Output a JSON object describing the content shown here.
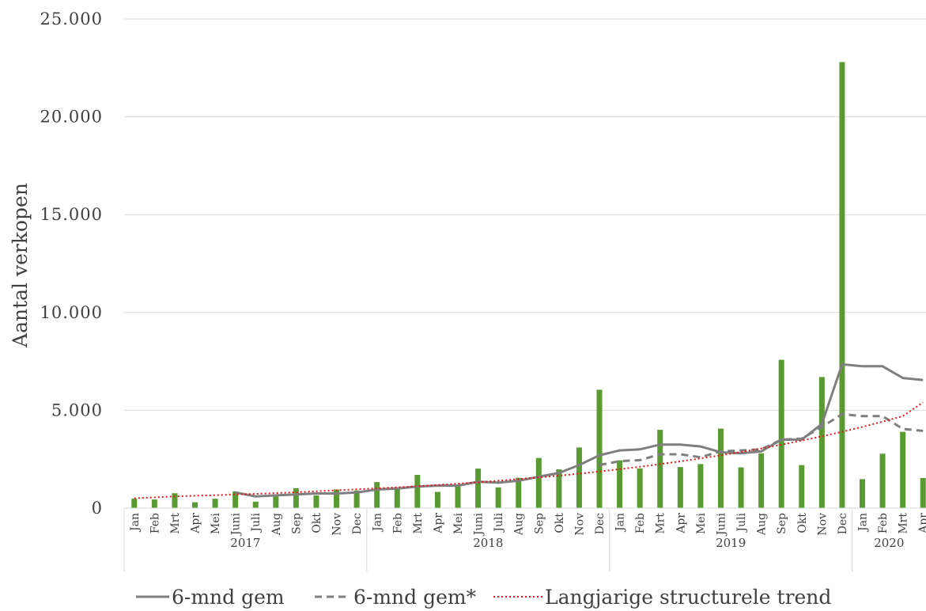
{
  "chart_data": {
    "type": "bar",
    "ylabel": "Aantal verkopen",
    "ylim": [
      0,
      25000
    ],
    "yticks": [
      "0",
      "5.000",
      "10.000",
      "15.000",
      "20.000",
      "25.000"
    ],
    "grid": true,
    "legend_position": "bottom",
    "categories": [
      "Jan",
      "Feb",
      "Mrt",
      "Apr",
      "Mei",
      "Juni",
      "Juli",
      "Aug",
      "Sep",
      "Okt",
      "Nov",
      "Dec",
      "Jan",
      "Feb",
      "Mrt",
      "Apr",
      "Mei",
      "Juni",
      "Juli",
      "Aug",
      "Sep",
      "Okt",
      "Nov",
      "Dec",
      "Jan",
      "Feb",
      "Mrt",
      "Apr",
      "Mei",
      "Juni",
      "Juli",
      "Aug",
      "Sep",
      "Okt",
      "Nov",
      "Dec",
      "Jan",
      "Feb",
      "Mrt",
      "Apr"
    ],
    "years": [
      {
        "label": "2017",
        "months": 12
      },
      {
        "label": "2018",
        "months": 12
      },
      {
        "label": "2019",
        "months": 12
      },
      {
        "label": "2020",
        "months": 4
      }
    ],
    "bars": {
      "color": "#5a9a32",
      "values": [
        480,
        440,
        760,
        300,
        480,
        850,
        330,
        600,
        1020,
        650,
        950,
        900,
        1330,
        1050,
        1700,
        830,
        1150,
        2020,
        1060,
        1550,
        2560,
        1980,
        3100,
        6050,
        2440,
        2030,
        4000,
        2100,
        2250,
        4060,
        2080,
        2800,
        7580,
        2200,
        6700,
        22800,
        1480,
        2780,
        3900,
        1540
      ]
    },
    "series": [
      {
        "name": "6-mnd gem",
        "style": "solid",
        "color": "#7f7f7f",
        "values": [
          null,
          null,
          null,
          null,
          null,
          800,
          600,
          650,
          700,
          750,
          750,
          800,
          950,
          1000,
          1100,
          1150,
          1150,
          1350,
          1300,
          1400,
          1600,
          1800,
          2200,
          2700,
          2950,
          3000,
          3250,
          3250,
          3150,
          2850,
          2800,
          2900,
          3500,
          3500,
          4300,
          7350,
          7250,
          7250,
          6650,
          6550
        ]
      },
      {
        "name": "6-mnd gem*",
        "style": "dashed",
        "color": "#7f7f7f",
        "values": [
          null,
          null,
          null,
          null,
          null,
          null,
          null,
          null,
          null,
          null,
          null,
          null,
          null,
          null,
          null,
          null,
          null,
          null,
          null,
          null,
          null,
          null,
          null,
          2200,
          2400,
          2450,
          2750,
          2750,
          2600,
          2900,
          2950,
          3000,
          3500,
          3550,
          4150,
          4800,
          4700,
          4700,
          4050,
          3950
        ]
      },
      {
        "name": "Langjarige structurele trend",
        "style": "dotted",
        "color": "#e8141a",
        "values": [
          500,
          550,
          600,
          630,
          660,
          700,
          730,
          770,
          810,
          860,
          910,
          960,
          1010,
          1060,
          1120,
          1180,
          1250,
          1320,
          1400,
          1480,
          1570,
          1660,
          1760,
          1870,
          1990,
          2110,
          2250,
          2390,
          2540,
          2700,
          2870,
          3050,
          3240,
          3450,
          3670,
          3900,
          4150,
          4420,
          4700,
          5400
        ]
      }
    ]
  }
}
